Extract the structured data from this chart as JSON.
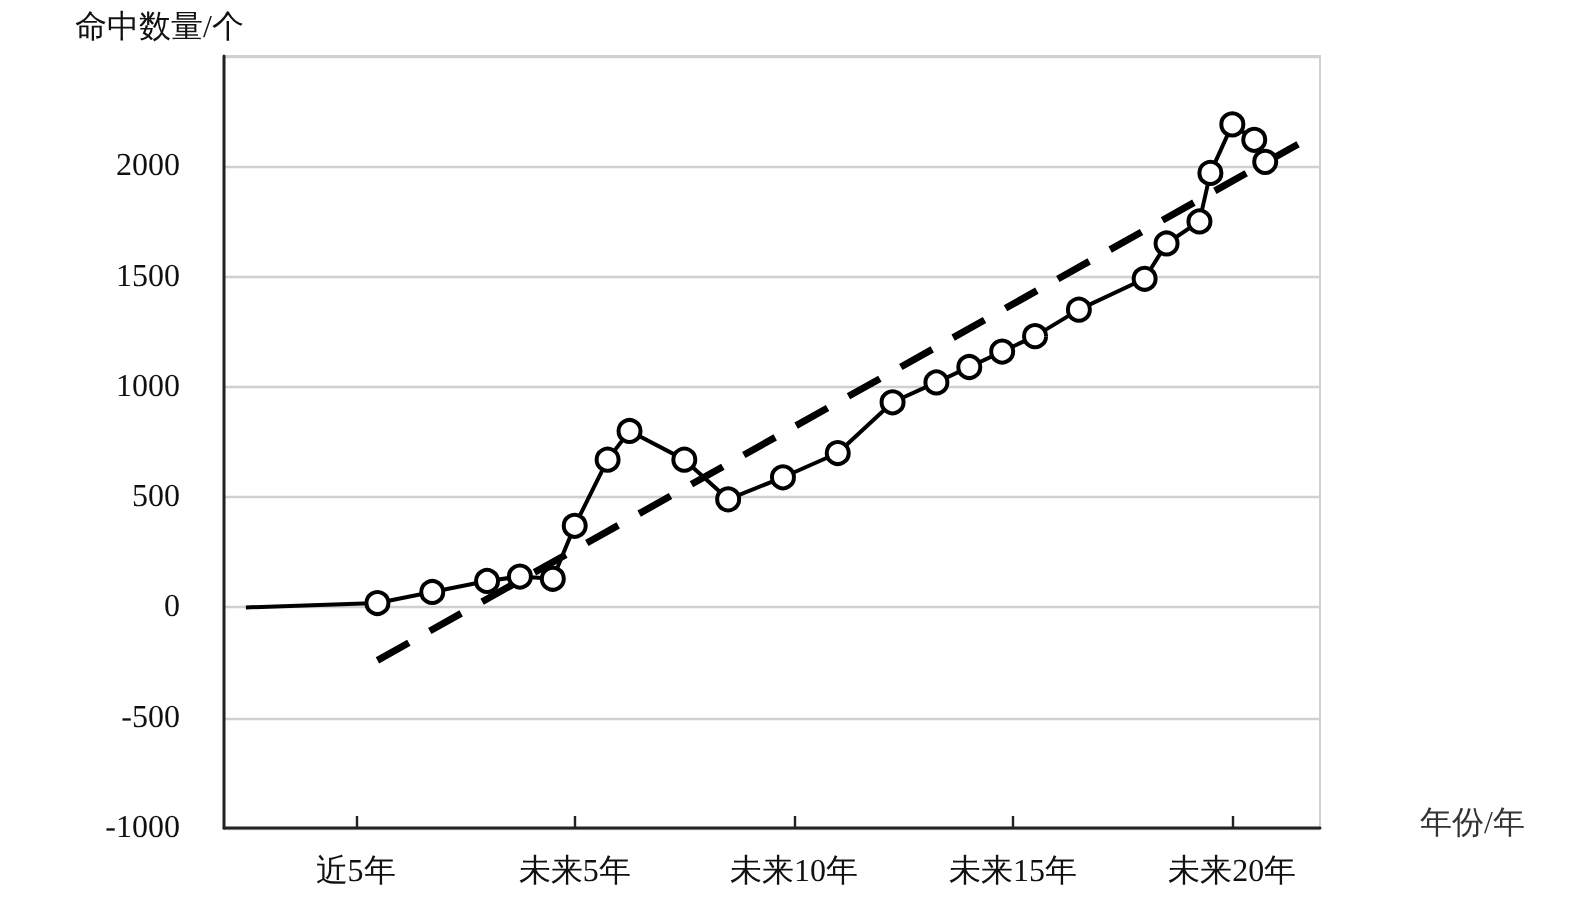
{
  "chart_data": {
    "type": "line",
    "xlabel": "年份/年",
    "ylabel": "命中数量/个",
    "categories": [
      null,
      null,
      null,
      null,
      null,
      null,
      null,
      null,
      null,
      null,
      null,
      null,
      "近5年",
      null,
      null,
      null,
      null,
      null,
      null,
      null,
      null,
      null,
      null,
      null,
      null,
      null,
      null,
      null,
      null,
      null,
      null,
      null,
      "未来5年",
      null,
      null,
      null,
      null,
      null,
      null,
      null,
      null,
      null,
      null,
      null,
      null,
      null,
      null,
      null,
      null,
      null,
      null,
      null,
      "未来10年",
      null,
      null,
      null,
      null,
      null,
      null,
      null,
      null,
      null,
      null,
      null,
      null,
      null,
      null,
      null,
      null,
      null,
      null,
      null,
      "未来15年",
      null,
      null,
      null,
      null,
      null,
      null,
      null,
      null,
      null,
      null,
      null,
      null,
      null,
      null,
      null,
      null,
      null,
      null,
      null,
      "未来20年",
      null,
      null,
      null,
      null,
      null,
      null,
      null,
      null
    ],
    "ylim": [
      -1000,
      2500
    ],
    "yticks": [
      -1000,
      -500,
      0,
      500,
      1000,
      1500,
      2000,
      {
        "value": 2500,
        "label": null
      }
    ],
    "grid": "y",
    "series": [
      {
        "color": "#000000",
        "marker": "none",
        "line_style": "solid",
        "values": [
          null,
          null,
          0,
          null,
          null,
          null,
          null,
          null,
          null,
          null,
          null,
          null,
          null,
          null,
          20,
          null,
          null,
          null,
          null,
          null,
          null,
          null,
          null,
          null,
          null,
          null,
          null,
          null,
          null,
          null,
          null,
          null,
          null,
          null,
          null,
          null,
          null,
          null,
          null,
          null,
          null,
          null,
          null,
          null,
          null,
          null,
          null,
          null,
          null,
          null,
          null,
          null,
          null,
          null,
          null,
          null,
          null,
          null,
          null,
          null,
          null,
          null,
          null,
          null,
          null,
          null,
          null,
          null,
          null,
          null,
          null,
          null,
          null,
          null,
          null,
          null,
          null,
          null,
          null,
          null,
          null,
          null,
          null,
          null,
          null,
          null,
          null,
          null,
          null,
          null,
          null,
          null,
          null,
          null,
          null,
          null,
          null,
          null,
          null,
          null,
          null
        ]
      },
      {
        "color": "#000000",
        "marker": "circle",
        "line_style": "solid",
        "values": [
          null,
          null,
          null,
          null,
          null,
          null,
          null,
          null,
          null,
          null,
          null,
          null,
          null,
          null,
          20,
          null,
          null,
          null,
          null,
          70,
          null,
          null,
          null,
          null,
          120,
          null,
          null,
          140,
          null,
          null,
          130,
          null,
          370,
          null,
          null,
          670,
          null,
          800,
          null,
          null,
          null,
          null,
          670,
          null,
          null,
          null,
          490,
          null,
          null,
          null,
          null,
          590,
          null,
          null,
          null,
          null,
          700,
          null,
          null,
          null,
          null,
          930,
          null,
          null,
          null,
          1020,
          null,
          null,
          1090,
          null,
          null,
          1160,
          null,
          null,
          1230,
          null,
          null,
          null,
          1350,
          null,
          null,
          null,
          null,
          null,
          1490,
          null,
          1650,
          null,
          null,
          1750,
          1970,
          null,
          2190,
          null,
          2120,
          2020,
          null,
          null,
          null,
          null,
          null
        ]
      },
      {
        "type": "line",
        "color": "#000000",
        "marker": "none",
        "line_style": "dashed",
        "values": [
          null,
          null,
          null,
          null,
          null,
          null,
          null,
          null,
          null,
          null,
          null,
          null,
          null,
          null,
          -240,
          null,
          null,
          null,
          null,
          null,
          null,
          null,
          null,
          null,
          null,
          null,
          null,
          null,
          null,
          null,
          null,
          null,
          null,
          null,
          null,
          null,
          null,
          null,
          null,
          null,
          null,
          null,
          null,
          null,
          null,
          null,
          null,
          null,
          null,
          null,
          null,
          null,
          null,
          null,
          null,
          null,
          null,
          null,
          null,
          null,
          null,
          null,
          null,
          null,
          null,
          null,
          null,
          null,
          null,
          null,
          null,
          null,
          null,
          null,
          null,
          null,
          null,
          null,
          null,
          null,
          null,
          null,
          null,
          null,
          null,
          null,
          null,
          null,
          null,
          null,
          null,
          null,
          null,
          null,
          null,
          null,
          null,
          null,
          2100,
          null,
          null
        ]
      }
    ]
  }
}
